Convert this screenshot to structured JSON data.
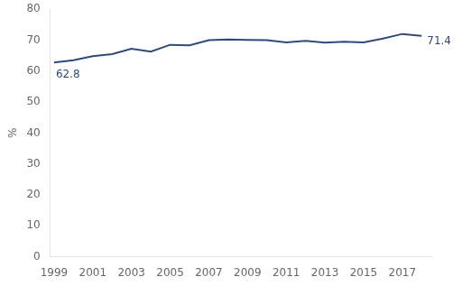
{
  "chart_data": {
    "type": "line",
    "x": [
      1999,
      2000,
      2001,
      2002,
      2003,
      2004,
      2005,
      2006,
      2007,
      2008,
      2009,
      2010,
      2011,
      2012,
      2013,
      2014,
      2015,
      2016,
      2017,
      2018
    ],
    "values": [
      62.8,
      63.5,
      64.8,
      65.5,
      67.2,
      66.3,
      68.5,
      68.3,
      70.0,
      70.2,
      70.1,
      70.0,
      69.3,
      69.8,
      69.2,
      69.5,
      69.3,
      70.5,
      72.0,
      71.4
    ],
    "color": "#2E4A7A",
    "y_label": "%",
    "xlim": [
      1998.8,
      2018.5
    ],
    "xticks": [
      1999,
      2001,
      2003,
      2005,
      2007,
      2009,
      2011,
      2013,
      2015,
      2017
    ],
    "ylim": [
      0,
      80
    ],
    "yticks": [
      0,
      10,
      20,
      30,
      40,
      50,
      60,
      70,
      80
    ],
    "annotations": [
      {
        "text": "62.8",
        "x": 1999,
        "y": 62.8
      },
      {
        "text": "71.4",
        "x": 2018,
        "y": 71.4
      }
    ],
    "grid": false
  }
}
